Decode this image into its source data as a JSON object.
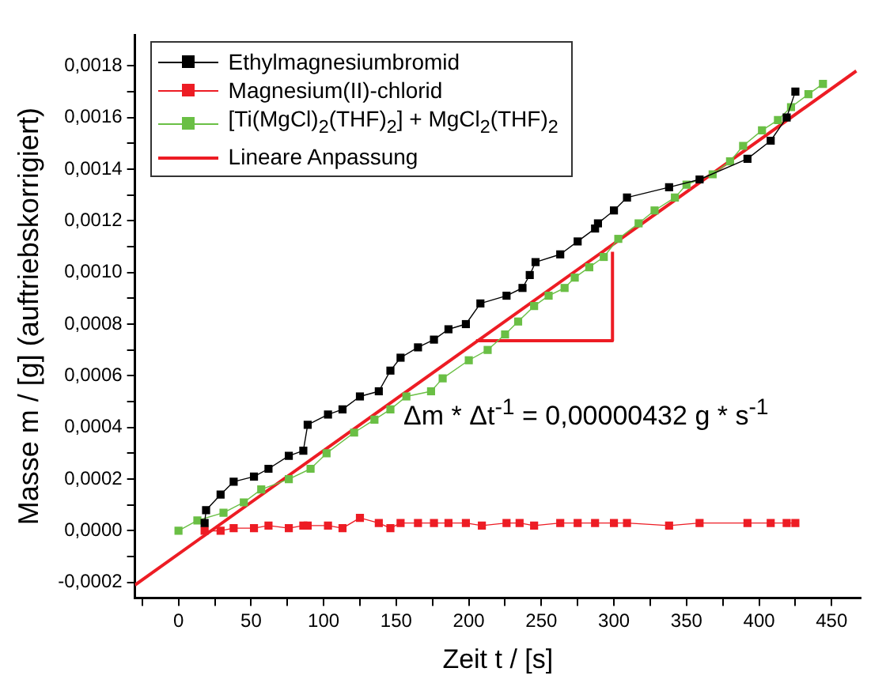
{
  "chart_data": {
    "type": "line",
    "xlabel": "Zeit t / [s]",
    "ylabel": "Masse m / [g] (auftriebskorrigiert)",
    "xlim": [
      -30,
      470
    ],
    "ylim": [
      -0.00026,
      0.00192
    ],
    "xticks": [
      {
        "value": -25,
        "label": null
      },
      0,
      {
        "value": 25,
        "label": null
      },
      50,
      {
        "value": 75,
        "label": null
      },
      100,
      {
        "value": 125,
        "label": null
      },
      150,
      {
        "value": 175,
        "label": null
      },
      200,
      {
        "value": 225,
        "label": null
      },
      250,
      {
        "value": 275,
        "label": null
      },
      300,
      {
        "value": 325,
        "label": null
      },
      350,
      {
        "value": 375,
        "label": null
      },
      400,
      {
        "value": 425,
        "label": null
      },
      450
    ],
    "yticks": [
      {
        "value": -0.0002,
        "label": "-0,0002"
      },
      {
        "value": -0.0001,
        "label": null
      },
      {
        "value": 0,
        "label": "0,0000"
      },
      {
        "value": 0.0001,
        "label": null
      },
      {
        "value": 0.0002,
        "label": "0,0002"
      },
      {
        "value": 0.0003,
        "label": null
      },
      {
        "value": 0.0004,
        "label": "0,0004"
      },
      {
        "value": 0.0005,
        "label": null
      },
      {
        "value": 0.0006,
        "label": "0,0006"
      },
      {
        "value": 0.0007,
        "label": null
      },
      {
        "value": 0.0008,
        "label": "0,0008"
      },
      {
        "value": 0.0009,
        "label": null
      },
      {
        "value": 0.001,
        "label": "0,0010"
      },
      {
        "value": 0.0011,
        "label": null
      },
      {
        "value": 0.0012,
        "label": "0,0012"
      },
      {
        "value": 0.0013,
        "label": null
      },
      {
        "value": 0.0014,
        "label": "0,0014"
      },
      {
        "value": 0.0015,
        "label": null
      },
      {
        "value": 0.0016,
        "label": "0,0016"
      },
      {
        "value": 0.0017,
        "label": null
      },
      {
        "value": 0.0018,
        "label": "0,0018"
      }
    ],
    "grid": false,
    "legend": "top left",
    "marker": "square",
    "line_style": "solid",
    "annotations": [
      "Δm * Δt$^{-1}$ = 0,00000432 g * s$^{-1}$"
    ],
    "series": [
      {
        "name": "Ethylmagnesiumbromid",
        "color": "#000000",
        "x": [
          18,
          19,
          29,
          38,
          52,
          62,
          76,
          86,
          89,
          103,
          113,
          125,
          138,
          146,
          153,
          165,
          176,
          186,
          198,
          208,
          226,
          237,
          242,
          246,
          263,
          275,
          287,
          289,
          300,
          309,
          338,
          359,
          392,
          408,
          419,
          425
        ],
        "values": [
          3e-05,
          8e-05,
          0.00014,
          0.00019,
          0.00021,
          0.00024,
          0.00029,
          0.00031,
          0.00041,
          0.00045,
          0.00047,
          0.00052,
          0.00054,
          0.00062,
          0.00067,
          0.00071,
          0.00074,
          0.00078,
          0.0008,
          0.00088,
          0.00091,
          0.00094,
          0.00099,
          0.00104,
          0.00107,
          0.00112,
          0.00117,
          0.00119,
          0.00124,
          0.00129,
          0.00133,
          0.00136,
          0.00144,
          0.00151,
          0.0016,
          0.0017
        ]
      },
      {
        "name": "Magnesium(II)-chlorid",
        "color": "#ed1c24",
        "x": [
          18,
          29,
          38,
          52,
          62,
          76,
          86,
          89,
          103,
          113,
          125,
          138,
          146,
          153,
          165,
          176,
          186,
          198,
          209,
          226,
          235,
          245,
          263,
          275,
          287,
          300,
          309,
          338,
          359,
          392,
          408,
          419,
          425
        ],
        "values": [
          0,
          0,
          1e-05,
          1e-05,
          2e-05,
          1e-05,
          2e-05,
          2e-05,
          2e-05,
          1e-05,
          5e-05,
          3e-05,
          1e-05,
          3e-05,
          3e-05,
          3e-05,
          3e-05,
          3e-05,
          2e-05,
          3e-05,
          3e-05,
          2e-05,
          3e-05,
          3e-05,
          3e-05,
          3e-05,
          3e-05,
          2e-05,
          3e-05,
          3e-05,
          3e-05,
          3e-05,
          3e-05
        ]
      },
      {
        "name": "[Ti(MgCl)$_{2}$(THF)$_{2}$] + MgCl$_{2}$(THF)$_{2}$",
        "color": "#6abf45",
        "x": [
          0,
          13,
          31,
          45,
          57,
          76,
          91,
          102,
          121,
          135,
          146,
          157,
          174,
          182,
          200,
          213,
          225,
          234,
          245,
          255,
          266,
          273,
          283,
          293,
          303,
          317,
          328,
          342,
          350,
          368,
          380,
          389,
          402,
          413,
          422,
          434,
          444
        ],
        "values": [
          0,
          4e-05,
          7e-05,
          0.00011,
          0.00016,
          0.0002,
          0.00024,
          0.0003,
          0.00038,
          0.00043,
          0.00047,
          0.00052,
          0.00054,
          0.00059,
          0.00066,
          0.0007,
          0.00076,
          0.00081,
          0.00087,
          0.00091,
          0.00094,
          0.00098,
          0.00102,
          0.00106,
          0.00113,
          0.00119,
          0.00124,
          0.00129,
          0.00134,
          0.00138,
          0.00143,
          0.00149,
          0.00155,
          0.00159,
          0.00164,
          0.00169,
          0.00173
        ]
      },
      {
        "name": "Lineare Anpassung",
        "color": "#ed1c24",
        "marker": "none",
        "x": [
          -30,
          467
        ],
        "values": [
          -0.00021,
          0.00178
        ]
      },
      {
        "color": "#ed1c24",
        "marker": "none",
        "x": [
          205,
          299,
          299
        ],
        "values": [
          0.000736,
          0.000736,
          0.00108
        ]
      }
    ]
  }
}
